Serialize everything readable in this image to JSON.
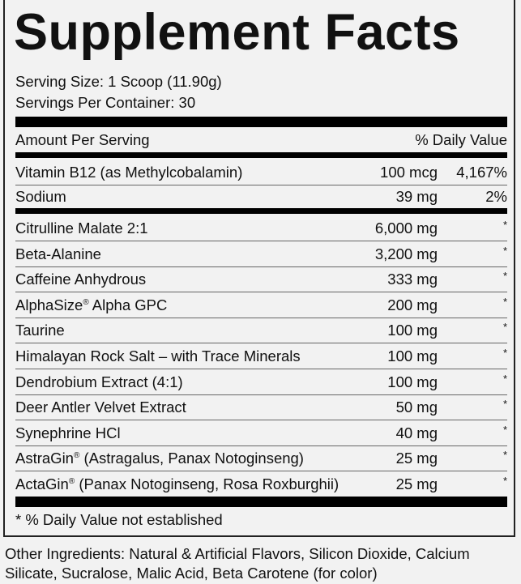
{
  "title": "Supplement Facts",
  "serving_size": "Serving Size: 1 Scoop (11.90g)",
  "servings_per_container": "Servings Per Container: 30",
  "header": {
    "amount": "Amount Per Serving",
    "daily_value": "% Daily Value"
  },
  "nutrients": [
    {
      "name": "Vitamin B12 (as Methylcobalamin)",
      "amount": "100 mcg",
      "dv": "4,167%"
    },
    {
      "name": "Sodium",
      "amount": "39 mg",
      "dv": "2%"
    }
  ],
  "ingredients": [
    {
      "name": "Citrulline Malate 2:1",
      "amount": "6,000 mg",
      "dv": "*"
    },
    {
      "name": "Beta-Alanine",
      "amount": "3,200 mg",
      "dv": "*"
    },
    {
      "name": "Caffeine Anhydrous",
      "amount": "333 mg",
      "dv": "*"
    },
    {
      "name": "AlphaSize",
      "reg": "®",
      "rest": " Alpha GPC",
      "amount": "200 mg",
      "dv": "*"
    },
    {
      "name": "Taurine",
      "amount": "100 mg",
      "dv": "*"
    },
    {
      "name": "Himalayan Rock Salt – with Trace Minerals",
      "amount": "100 mg",
      "dv": "*"
    },
    {
      "name": "Dendrobium Extract (4:1)",
      "amount": "100 mg",
      "dv": "*"
    },
    {
      "name": "Deer Antler Velvet Extract",
      "amount": "50 mg",
      "dv": "*"
    },
    {
      "name": "Synephrine HCl",
      "amount": "40 mg",
      "dv": "*"
    },
    {
      "name": "AstraGin",
      "reg": "®",
      "rest": " (Astragalus, Panax Notoginseng)",
      "amount": "25 mg",
      "dv": "*"
    },
    {
      "name": "ActaGin",
      "reg": "®",
      "rest": " (Panax Notoginseng, Rosa Roxburghii)",
      "amount": "25 mg",
      "dv": "*"
    }
  ],
  "footnote": "* % Daily Value not established",
  "other_ingredients": "Other Ingredients: Natural & Artificial Flavors, Silicon Dioxide, Calcium Silicate, Sucralose, Malic Acid, Beta Carotene (for color)"
}
